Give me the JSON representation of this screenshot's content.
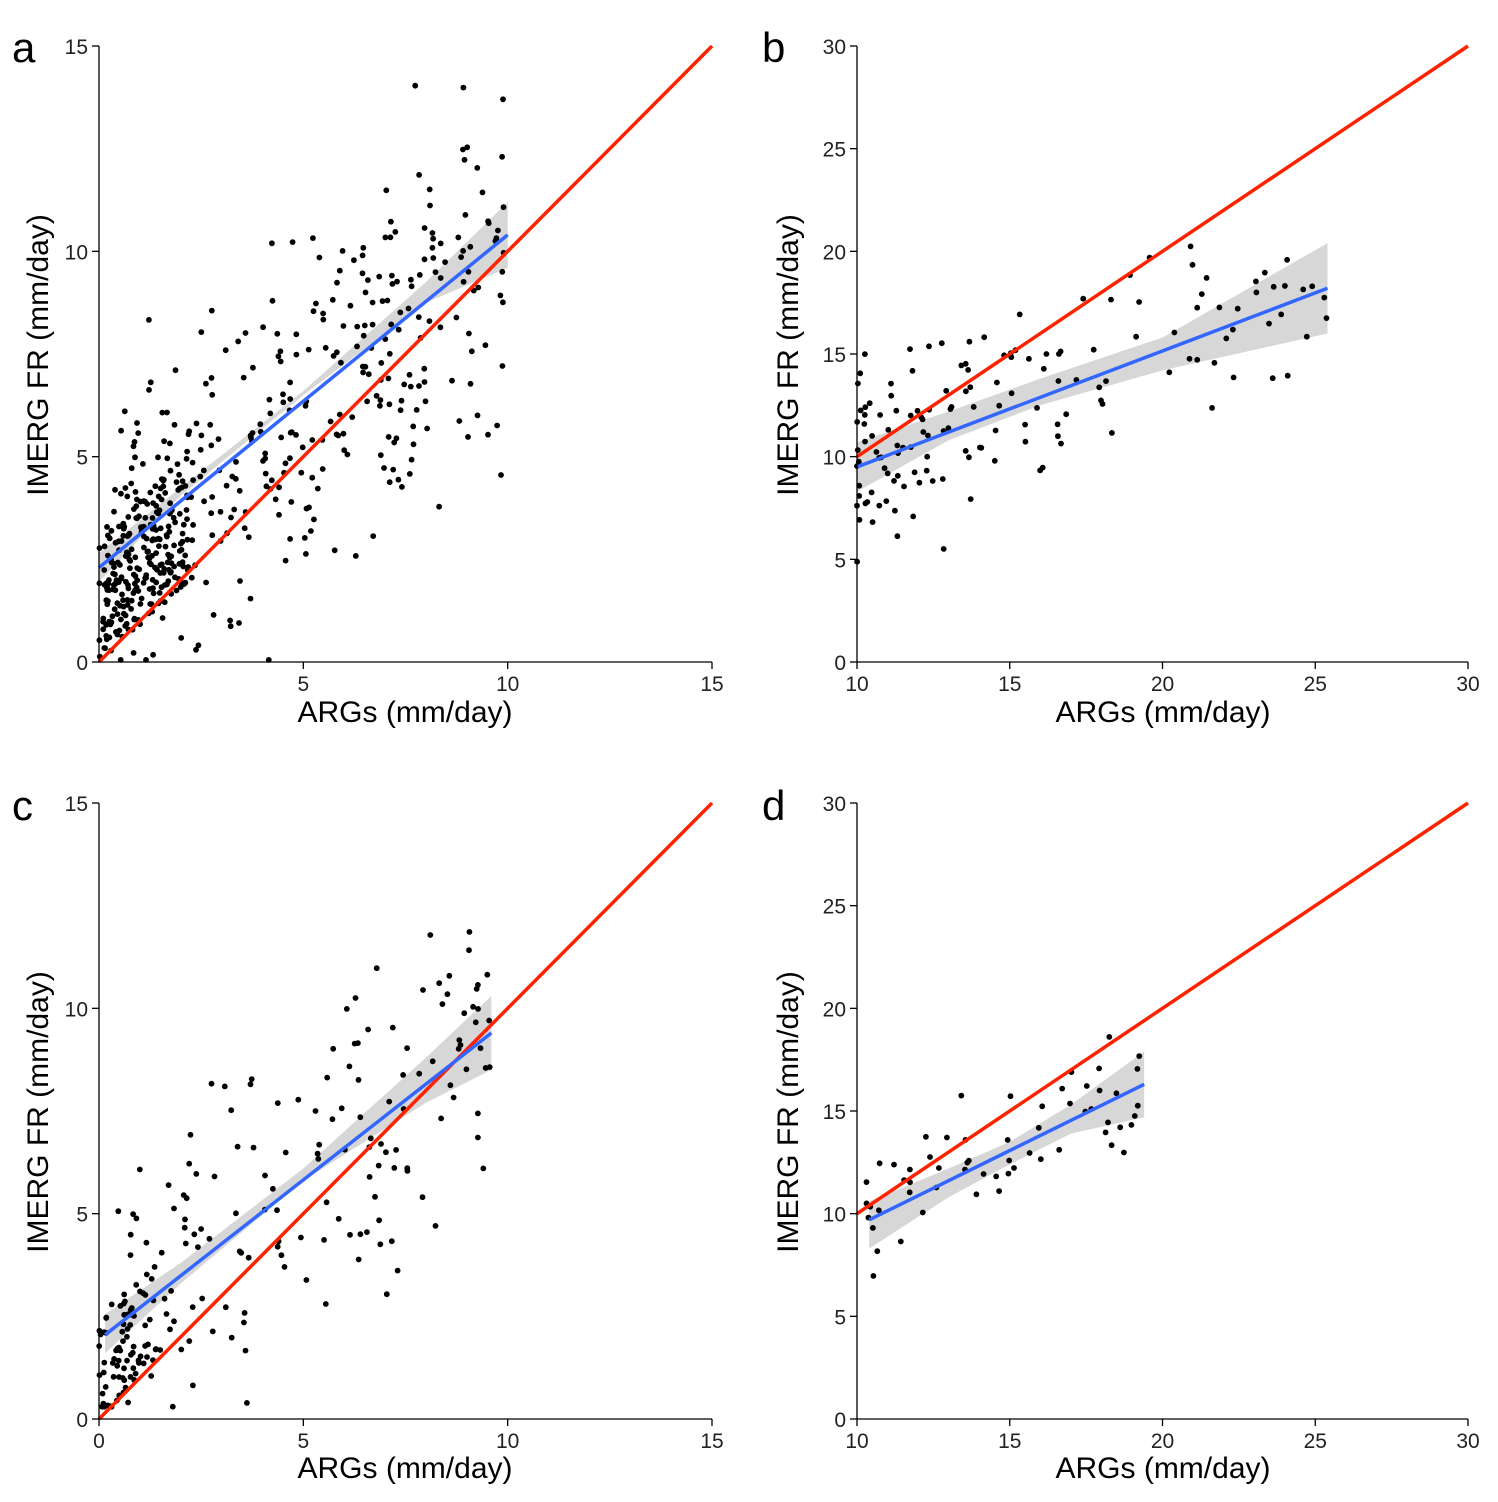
{
  "figure": {
    "colors": {
      "points": "#000000",
      "fit": "#3366ff",
      "ribbon": "#bdbdbd",
      "reference": "#ff2200"
    }
  },
  "chart_data": [
    {
      "panel": "a",
      "type": "scatter",
      "xlabel": "ARGs (mm/day)",
      "ylabel": "IMERG FR (mm/day)",
      "xlim": [
        0,
        15
      ],
      "ylim": [
        0,
        15
      ],
      "xticks": [
        5,
        10,
        15
      ],
      "yticks": [
        0,
        5,
        10,
        15
      ],
      "x_tick_labels": [
        "5",
        "10",
        "15"
      ],
      "y_tick_labels": [
        "0",
        "5",
        "10",
        "15"
      ],
      "reference_line": {
        "from": [
          0,
          0
        ],
        "to": [
          15,
          15
        ]
      },
      "fit_line": {
        "from": [
          0,
          2.3
        ],
        "to": [
          10,
          10.4
        ]
      },
      "ribbon": {
        "x": [
          0,
          2,
          5,
          8,
          10
        ],
        "lower": [
          1.95,
          4.05,
          6.5,
          8.75,
          9.6
        ],
        "upper": [
          2.65,
          4.25,
          6.6,
          9.25,
          11.2
        ]
      },
      "n_points": 560,
      "points_density": "dense near origin, broad scatter up to x=10, y=15"
    },
    {
      "panel": "b",
      "type": "scatter",
      "xlabel": "ARGs (mm/day)",
      "ylabel": "IMERG FR (mm/day)",
      "xlim": [
        10,
        30
      ],
      "ylim": [
        0,
        30
      ],
      "xticks": [
        10,
        15,
        20,
        25,
        30
      ],
      "yticks": [
        0,
        5,
        10,
        15,
        20,
        25,
        30
      ],
      "x_tick_labels": [
        "10",
        "15",
        "20",
        "25",
        "30"
      ],
      "y_tick_labels": [
        "0",
        "5",
        "10",
        "15",
        "20",
        "25",
        "30"
      ],
      "reference_line": {
        "from": [
          10,
          10
        ],
        "to": [
          30,
          30
        ]
      },
      "fit_line": {
        "from": [
          10,
          9.5
        ],
        "to": [
          25.4,
          18.2
        ]
      },
      "ribbon": {
        "x": [
          10,
          13,
          16,
          20,
          25.4
        ],
        "lower": [
          8.3,
          10.8,
          12.5,
          14.2,
          16.0
        ],
        "upper": [
          10.7,
          12.2,
          13.8,
          15.8,
          20.4
        ]
      },
      "n_points": 150,
      "points_density": "concentrated x=10-16, y=5-20"
    },
    {
      "panel": "c",
      "type": "scatter",
      "xlabel": "ARGs (mm/day)",
      "ylabel": "IMERG FR (mm/day)",
      "xlim": [
        0,
        15
      ],
      "ylim": [
        0,
        15
      ],
      "xticks": [
        0,
        5,
        10,
        15
      ],
      "yticks": [
        0,
        5,
        10,
        15
      ],
      "x_tick_labels": [
        "0",
        "5",
        "10",
        "15"
      ],
      "y_tick_labels": [
        "0",
        "5",
        "10",
        "15"
      ],
      "reference_line": {
        "from": [
          0,
          0
        ],
        "to": [
          15,
          15
        ]
      },
      "fit_line": {
        "from": [
          0.15,
          2.05
        ],
        "to": [
          9.6,
          9.4
        ]
      },
      "ribbon": {
        "x": [
          0.15,
          2,
          5,
          8,
          9.6
        ],
        "lower": [
          1.6,
          3.3,
          5.8,
          7.7,
          8.5
        ],
        "upper": [
          2.55,
          3.8,
          6.1,
          8.8,
          10.3
        ]
      },
      "n_points": 230,
      "points_density": "dense near origin, scatter up to x=9.5, y=14"
    },
    {
      "panel": "d",
      "type": "scatter",
      "xlabel": "ARGs (mm/day)",
      "ylabel": "IMERG FR (mm/day)",
      "xlim": [
        10,
        30
      ],
      "ylim": [
        0,
        30
      ],
      "xticks": [
        10,
        15,
        20,
        25,
        30
      ],
      "yticks": [
        0,
        5,
        10,
        15,
        20,
        25,
        30
      ],
      "x_tick_labels": [
        "10",
        "15",
        "20",
        "25",
        "30"
      ],
      "y_tick_labels": [
        "0",
        "5",
        "10",
        "15",
        "20",
        "25",
        "30"
      ],
      "reference_line": {
        "from": [
          10,
          10
        ],
        "to": [
          30,
          30
        ]
      },
      "fit_line": {
        "from": [
          10.4,
          9.7
        ],
        "to": [
          19.4,
          16.3
        ]
      },
      "ribbon": {
        "x": [
          10.4,
          13,
          15,
          17,
          19.4
        ],
        "lower": [
          8.3,
          10.8,
          12.4,
          13.9,
          14.7
        ],
        "upper": [
          10.6,
          12.2,
          13.5,
          15.3,
          17.9
        ]
      },
      "n_points": 60,
      "points_density": "x=10-19.5, y=6-19"
    }
  ]
}
